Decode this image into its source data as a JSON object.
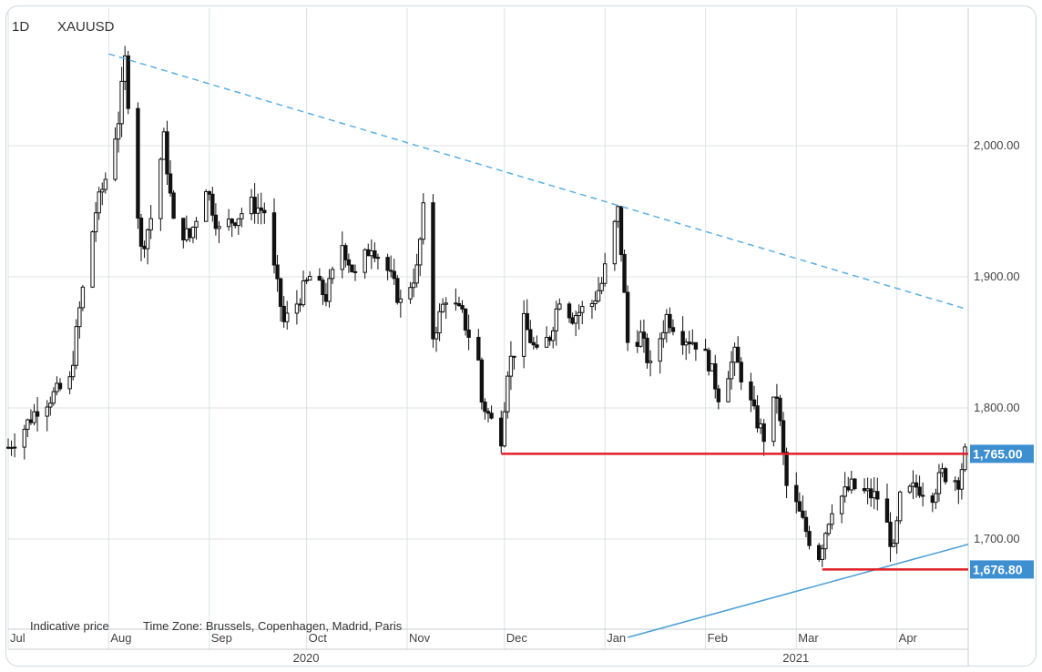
{
  "header": {
    "timeframe": "1D",
    "symbol": "XAUUSD"
  },
  "footer": {
    "indicative": "Indicative price",
    "timezone": "Time Zone: Brussels, Copenhagen, Madrid, Paris"
  },
  "colors": {
    "candle": "#111111",
    "grid": "#dde2e6",
    "trend_dashed": "#5ab0e4",
    "trend_solid": "#4a9fd8",
    "level": "#e01f26",
    "label_bg": "#3d8fd0",
    "axis_text": "#444444"
  },
  "chart_data": {
    "type": "candlestick",
    "symbol": "XAUUSD",
    "timeframe": "1D",
    "x_range": [
      "2020-07-01",
      "2021-04-23"
    ],
    "ylim": [
      1620,
      2090
    ],
    "y_ticks": [
      {
        "value": 2000,
        "label": "2,000.00"
      },
      {
        "value": 1900,
        "label": "1,900.00"
      },
      {
        "value": 1800,
        "label": "1,800.00"
      },
      {
        "value": 1700,
        "label": "1,700.00"
      }
    ],
    "x_ticks": [
      {
        "date": "2020-07-01",
        "label": "Jul"
      },
      {
        "date": "2020-08-01",
        "label": "Aug"
      },
      {
        "date": "2020-09-01",
        "label": "Sep"
      },
      {
        "date": "2020-10-01",
        "label": "Oct"
      },
      {
        "date": "2020-11-01",
        "label": "Nov"
      },
      {
        "date": "2020-12-01",
        "label": "Dec"
      },
      {
        "date": "2021-01-01",
        "label": "Jan"
      },
      {
        "date": "2021-02-01",
        "label": "Feb"
      },
      {
        "date": "2021-03-01",
        "label": "Mar"
      },
      {
        "date": "2021-04-01",
        "label": "Apr"
      }
    ],
    "year_labels": [
      {
        "date": "2020-10-01",
        "label": "2020"
      },
      {
        "date": "2021-03-01",
        "label": "2021"
      }
    ],
    "price_path": [
      [
        "2020-07-01",
        1770
      ],
      [
        "2020-07-06",
        1785
      ],
      [
        "2020-07-10",
        1800
      ],
      [
        "2020-07-14",
        1808
      ],
      [
        "2020-07-20",
        1820
      ],
      [
        "2020-07-23",
        1875
      ],
      [
        "2020-07-28",
        1950
      ],
      [
        "2020-07-31",
        1975
      ],
      [
        "2020-08-04",
        2020
      ],
      [
        "2020-08-06",
        2065
      ],
      [
        "2020-08-07",
        2035
      ],
      [
        "2020-08-11",
        1920
      ],
      [
        "2020-08-14",
        1945
      ],
      [
        "2020-08-18",
        2005
      ],
      [
        "2020-08-21",
        1940
      ],
      [
        "2020-08-26",
        1930
      ],
      [
        "2020-08-31",
        1970
      ],
      [
        "2020-09-04",
        1935
      ],
      [
        "2020-09-09",
        1945
      ],
      [
        "2020-09-14",
        1955
      ],
      [
        "2020-09-18",
        1950
      ],
      [
        "2020-09-21",
        1905
      ],
      [
        "2020-09-24",
        1865
      ],
      [
        "2020-09-28",
        1880
      ],
      [
        "2020-10-02",
        1900
      ],
      [
        "2020-10-07",
        1885
      ],
      [
        "2020-10-12",
        1925
      ],
      [
        "2020-10-16",
        1900
      ],
      [
        "2020-10-21",
        1925
      ],
      [
        "2020-10-26",
        1905
      ],
      [
        "2020-10-30",
        1880
      ],
      [
        "2020-11-04",
        1905
      ],
      [
        "2020-11-06",
        1950
      ],
      [
        "2020-11-09",
        1855
      ],
      [
        "2020-11-13",
        1885
      ],
      [
        "2020-11-18",
        1870
      ],
      [
        "2020-11-23",
        1835
      ],
      [
        "2020-11-24",
        1805
      ],
      [
        "2020-11-27",
        1790
      ],
      [
        "2020-11-30",
        1778
      ],
      [
        "2020-12-02",
        1830
      ],
      [
        "2020-12-07",
        1865
      ],
      [
        "2020-12-11",
        1840
      ],
      [
        "2020-12-15",
        1855
      ],
      [
        "2020-12-18",
        1885
      ],
      [
        "2020-12-22",
        1870
      ],
      [
        "2020-12-28",
        1880
      ],
      [
        "2020-12-31",
        1895
      ],
      [
        "2021-01-05",
        1950
      ],
      [
        "2021-01-06",
        1920
      ],
      [
        "2021-01-08",
        1850
      ],
      [
        "2021-01-12",
        1855
      ],
      [
        "2021-01-15",
        1830
      ],
      [
        "2021-01-20",
        1870
      ],
      [
        "2021-01-25",
        1855
      ],
      [
        "2021-01-29",
        1850
      ],
      [
        "2021-02-02",
        1835
      ],
      [
        "2021-02-05",
        1810
      ],
      [
        "2021-02-10",
        1840
      ],
      [
        "2021-02-16",
        1795
      ],
      [
        "2021-02-19",
        1778
      ],
      [
        "2021-02-23",
        1810
      ],
      [
        "2021-02-26",
        1740
      ],
      [
        "2021-03-01",
        1725
      ],
      [
        "2021-03-05",
        1700
      ],
      [
        "2021-03-08",
        1688
      ],
      [
        "2021-03-12",
        1725
      ],
      [
        "2021-03-18",
        1740
      ],
      [
        "2021-03-22",
        1735
      ],
      [
        "2021-03-26",
        1732
      ],
      [
        "2021-03-29",
        1710
      ],
      [
        "2021-03-31",
        1690
      ],
      [
        "2021-04-02",
        1730
      ],
      [
        "2021-04-07",
        1740
      ],
      [
        "2021-04-12",
        1735
      ],
      [
        "2021-04-15",
        1750
      ],
      [
        "2021-04-20",
        1745
      ],
      [
        "2021-04-22",
        1765
      ]
    ],
    "trendlines": [
      {
        "style": "dashed",
        "color": "#5ab0e4",
        "from": [
          "2020-08-01",
          2070
        ],
        "to": [
          "2021-04-23",
          1875
        ]
      },
      {
        "style": "solid",
        "color": "#4a9fd8",
        "from": [
          "2021-01-08",
          1625
        ],
        "to": [
          "2021-04-23",
          1696
        ]
      }
    ],
    "levels": [
      {
        "value": 1765,
        "label": "1,765.00",
        "from": "2020-11-30",
        "to": "2021-04-23",
        "color": "#e01f26"
      },
      {
        "value": 1676.8,
        "label": "1,676.80",
        "from": "2021-03-09",
        "to": "2021-04-23",
        "color": "#e01f26"
      }
    ]
  }
}
